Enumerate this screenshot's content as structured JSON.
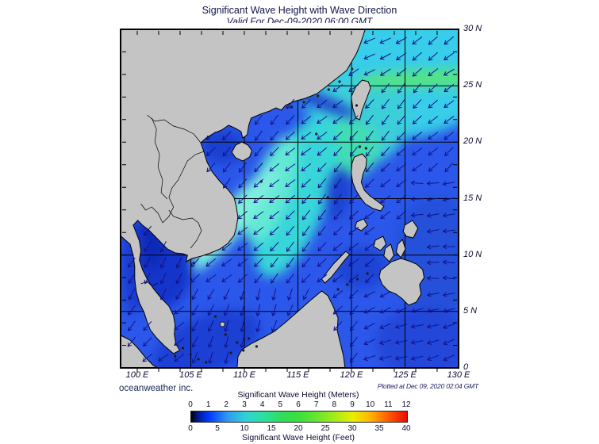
{
  "title": "Significant Wave Height with Wave Direction",
  "subtitle": "Valid For Dec-09-2020 06:00 GMT",
  "credit": "oceanweather inc.",
  "plotted_note": "Plotted at Dec 09, 2020 02:04 GMT",
  "axes": {
    "lat_labels": [
      "30 N",
      "25 N",
      "20 N",
      "15 N",
      "10 N",
      "5 N",
      "0"
    ],
    "lon_labels": [
      "100 E",
      "105 E",
      "110 E",
      "115 E",
      "120 E",
      "125 E",
      "130 E"
    ]
  },
  "colorbar": {
    "title_meters": "Significant Wave Height (Meters)",
    "title_feet": "Significant Wave Height (Feet)",
    "meters_ticks": [
      "0",
      "1",
      "2",
      "3",
      "4",
      "5",
      "6",
      "7",
      "8",
      "9",
      "10",
      "11",
      "12"
    ],
    "feet_ticks": [
      "0",
      "5",
      "10",
      "15",
      "20",
      "25",
      "30",
      "35",
      "40"
    ],
    "gradient_stops": [
      "#000000 0%",
      "#001890 3%",
      "#0138fa 8%",
      "#2f9bf0 17%",
      "#2fd0d8 25%",
      "#2edfa4 33%",
      "#2edd5a 42%",
      "#3ae03c 50%",
      "#66e52e 58%",
      "#a8ec18 67%",
      "#eaee00 75%",
      "#ffb400 83%",
      "#ff5400 92%",
      "#e80c00 100%"
    ]
  },
  "map": {
    "land_color": "#c4c4c4",
    "sea_base_color": "#2b58ea",
    "arrow_color": "#12128a",
    "grid_color": "#000000"
  }
}
